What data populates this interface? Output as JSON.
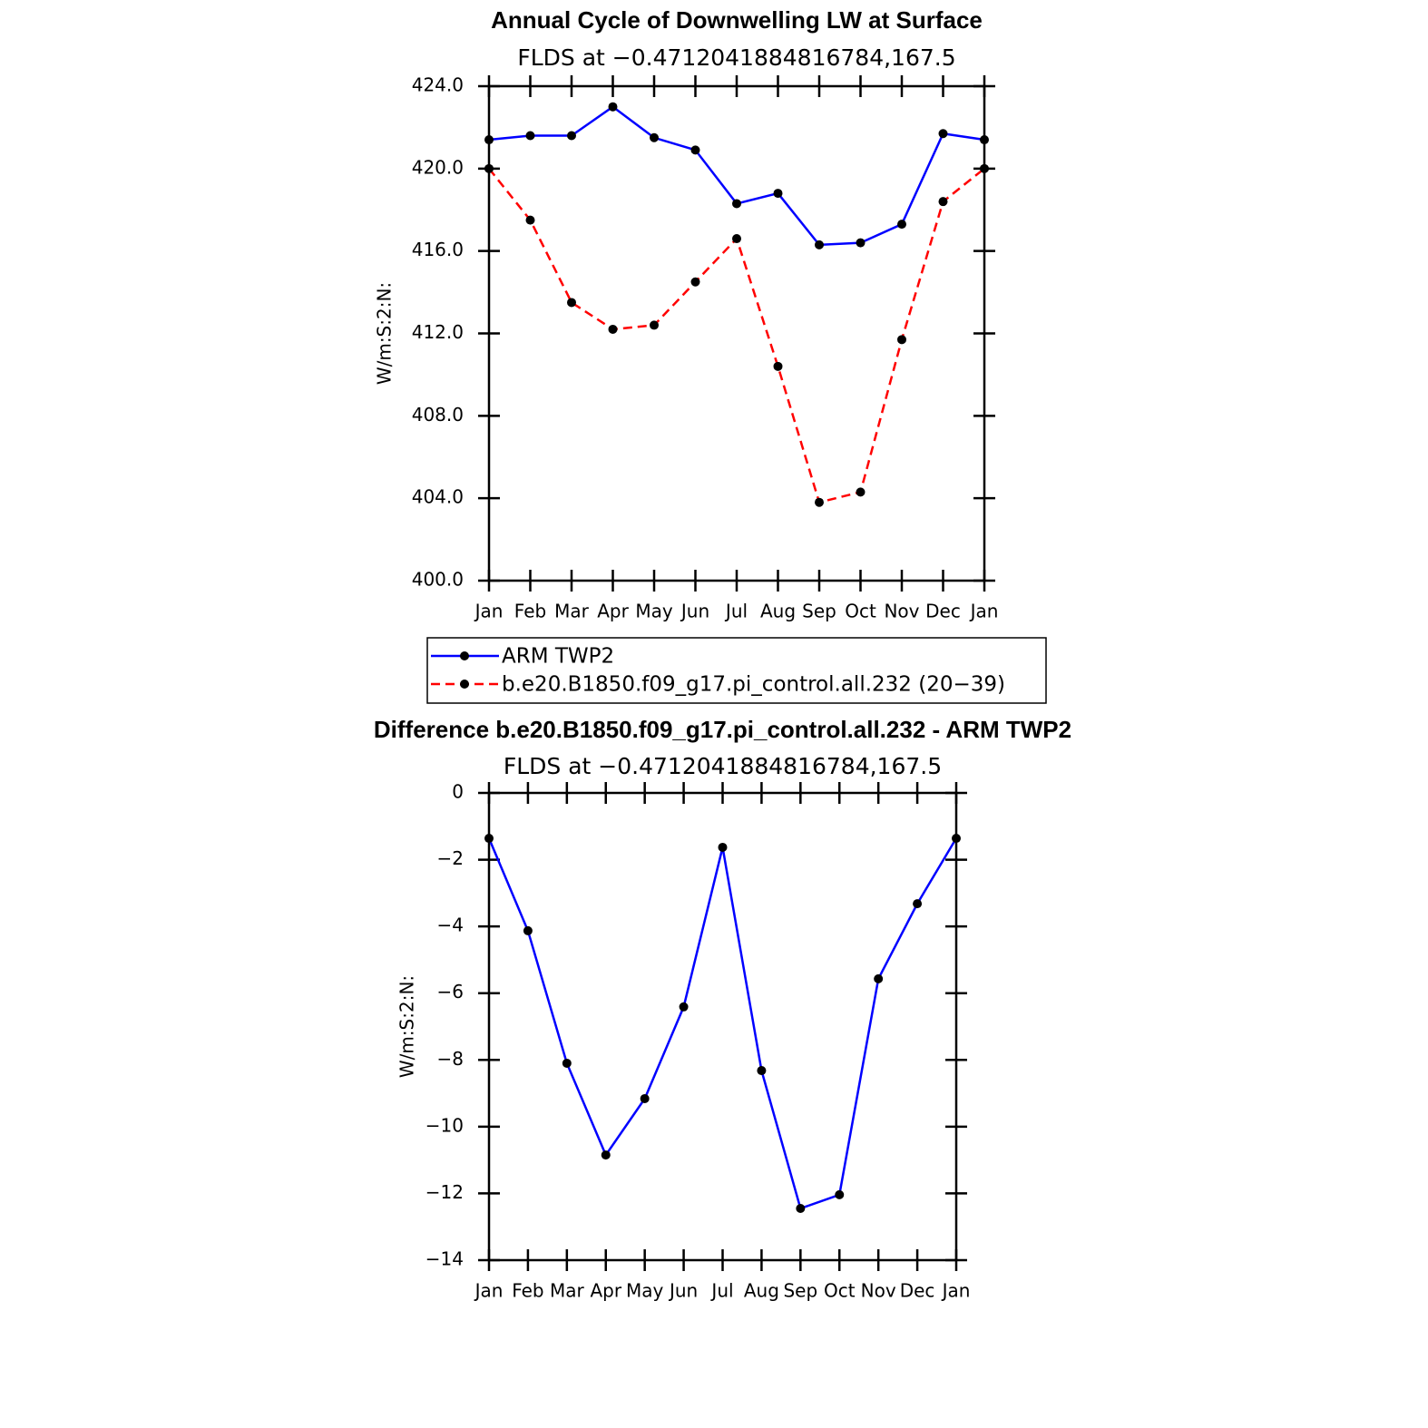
{
  "chart_data": [
    {
      "type": "line",
      "title": "Annual Cycle of Downwelling LW at Surface",
      "subtitle": "FLDS at −0.4712041884816784,167.5",
      "y_label": "W/m:S:2:N:",
      "categories": [
        "Jan",
        "Feb",
        "Mar",
        "Apr",
        "May",
        "Jun",
        "Jul",
        "Aug",
        "Sep",
        "Oct",
        "Nov",
        "Dec",
        "Jan"
      ],
      "series": [
        {
          "name": "ARM TWP2",
          "color": "#0000ff",
          "linestyle": "solid",
          "values": [
            421.4,
            421.6,
            421.6,
            423.0,
            421.5,
            420.9,
            418.3,
            418.8,
            416.3,
            416.4,
            417.3,
            421.7,
            421.4
          ]
        },
        {
          "name": "b.e20.B1850.f09_g17.pi_control.all.232 (20−39)",
          "color": "#ff0000",
          "linestyle": "dashed",
          "values": [
            420.0,
            417.5,
            413.5,
            412.2,
            412.4,
            414.5,
            416.6,
            410.4,
            403.8,
            404.3,
            411.7,
            418.4,
            420.0
          ]
        }
      ],
      "ylim": [
        400,
        424
      ],
      "yticks": [
        {
          "value": 400,
          "label": "400.0"
        },
        {
          "value": 404,
          "label": "404.0"
        },
        {
          "value": 408,
          "label": "408.0"
        },
        {
          "value": 412,
          "label": "412.0"
        },
        {
          "value": 416,
          "label": "416.0"
        },
        {
          "value": 420,
          "label": "420.0"
        },
        {
          "value": 424,
          "label": "424.0"
        }
      ],
      "markers": true,
      "legend": "bottom"
    },
    {
      "type": "line",
      "title": "Difference b.e20.B1850.f09_g17.pi_control.all.232 - ARM TWP2",
      "subtitle": "FLDS at −0.4712041884816784,167.5",
      "y_label": "W/m:S:2:N:",
      "categories": [
        "Jan",
        "Feb",
        "Mar",
        "Apr",
        "May",
        "Jun",
        "Jul",
        "Aug",
        "Sep",
        "Oct",
        "Nov",
        "Dec",
        "Jan"
      ],
      "values": [
        -1.36,
        -4.13,
        -8.1,
        -10.85,
        -9.16,
        -6.41,
        -1.63,
        -8.32,
        -12.45,
        -12.04,
        -5.57,
        -3.32,
        -1.36
      ],
      "color": "#0000ff",
      "ylim": [
        -14,
        0
      ],
      "yticks": [
        {
          "value": -14,
          "label": "−14"
        },
        {
          "value": -12,
          "label": "−12"
        },
        {
          "value": -10,
          "label": "−10"
        },
        {
          "value": -8,
          "label": "−8"
        },
        {
          "value": -6,
          "label": "−6"
        },
        {
          "value": -4,
          "label": "−4"
        },
        {
          "value": -2,
          "label": "−2"
        },
        0
      ],
      "markers": true
    }
  ]
}
